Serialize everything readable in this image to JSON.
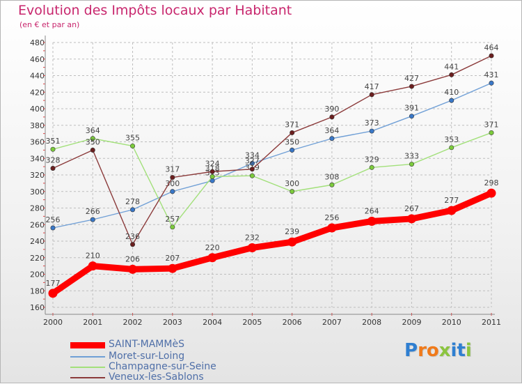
{
  "title": "Evolution des Impôts locaux par Habitant",
  "subtitle": "(en € et par an)",
  "brand": {
    "letters": [
      {
        "char": "P",
        "color": "#2f7fd1"
      },
      {
        "char": "r",
        "color": "#f07a1a"
      },
      {
        "char": "o",
        "color": "#f07a1a"
      },
      {
        "char": "x",
        "color": "#8bc43f"
      },
      {
        "char": "i",
        "color": "#2f7fd1"
      },
      {
        "char": "t",
        "color": "#2f7fd1"
      },
      {
        "char": "i",
        "color": "#8bc43f"
      }
    ]
  },
  "colors": {
    "grid": "#bdbdbd",
    "axis": "#888888",
    "tick_text": "#333333",
    "value_text": "#444444"
  },
  "chart_data": {
    "type": "line",
    "x": [
      "2000",
      "2001",
      "2002",
      "2003",
      "2004",
      "2005",
      "2006",
      "2007",
      "2008",
      "2009",
      "2010",
      "2011"
    ],
    "ylim": [
      160,
      480
    ],
    "yticks": [
      160,
      180,
      200,
      220,
      240,
      260,
      280,
      300,
      320,
      340,
      360,
      380,
      400,
      420,
      440,
      460,
      480
    ],
    "grid": true,
    "legend_position": "bottom-left",
    "series": [
      {
        "name": "SAINT-MAMMèS",
        "color": "#ff0000",
        "thick": true,
        "values": [
          177,
          210,
          206,
          207,
          220,
          232,
          239,
          256,
          264,
          267,
          277,
          298
        ]
      },
      {
        "name": "Moret-sur-Loing",
        "color": "#6f9fd6",
        "marker": "#3a78c8",
        "thick": false,
        "values": [
          256,
          266,
          278,
          300,
          313,
          334,
          350,
          364,
          373,
          391,
          410,
          431
        ]
      },
      {
        "name": "Champagne-sur-Seine",
        "color": "#a2e07a",
        "marker": "#7ccb3c",
        "thick": false,
        "values": [
          351,
          364,
          355,
          257,
          318,
          319,
          300,
          308,
          329,
          333,
          353,
          371
        ]
      },
      {
        "name": "Veneux-les-Sablons",
        "color": "#8b3a3a",
        "marker": "#6b1f1f",
        "thick": false,
        "values": [
          328,
          350,
          236,
          317,
          324,
          327,
          371,
          390,
          417,
          427,
          441,
          464
        ]
      }
    ]
  }
}
